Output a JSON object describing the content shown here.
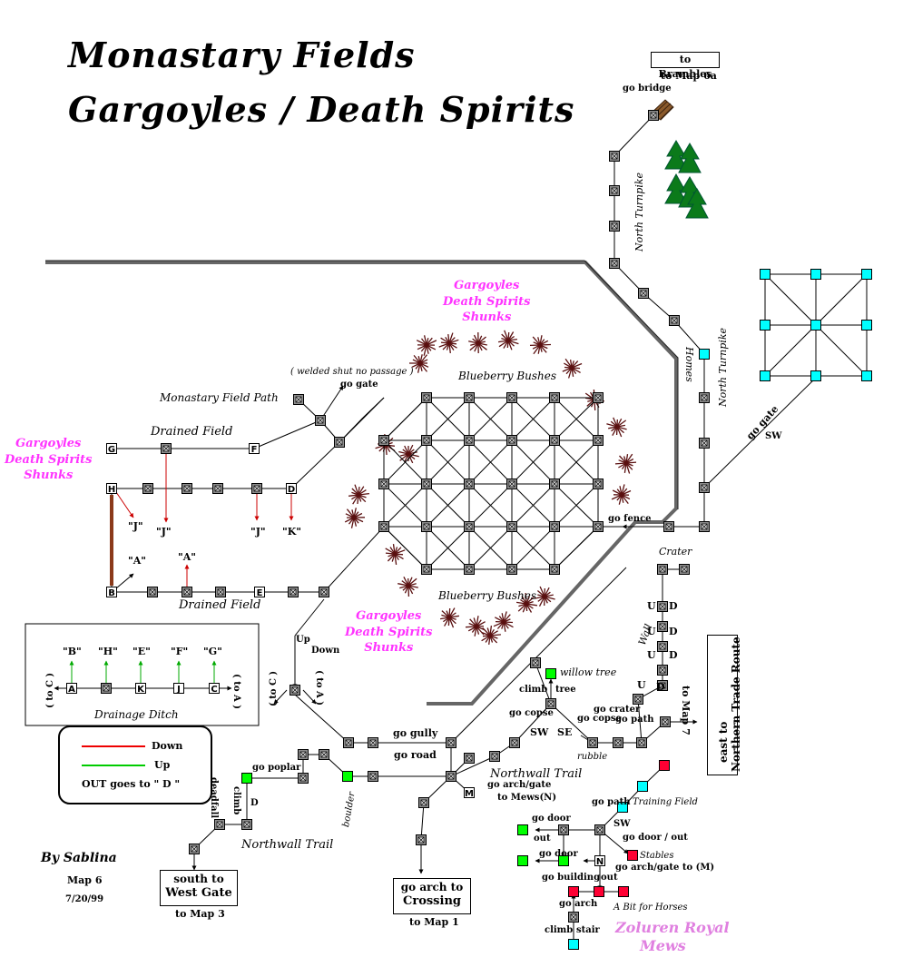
{
  "title_line1": "Monastary Fields",
  "title_line2": "Gargoyles / Death Spirits",
  "creatures": [
    "Gargoyles",
    "Death Spirits",
    "Shunks"
  ],
  "boxes": {
    "brambles_1": "to Brambles",
    "brambles_2": "to Map 6a",
    "west_gate_1": "south to",
    "west_gate_2": "West Gate",
    "west_gate_sub": "to Map 3",
    "crossing_1": "go arch to",
    "crossing_2": "Crossing",
    "crossing_sub": "to Map 1",
    "ntr_1": "east to",
    "ntr_2": "Northern Trade Route",
    "ntr_sub": "to Map 7"
  },
  "labels": {
    "go_bridge": "go bridge",
    "north_turnpike": "North Turnpike",
    "homes": "Homes",
    "go_gate": "go gate",
    "sw": "SW",
    "welded": "( welded shut no passage )",
    "go_gate_small": "go gate",
    "monastary_field_path": "Monastary Field Path",
    "blueberry_bushes": "Blueberry Bushes",
    "drained_field": "Drained Field",
    "go_fence": "go fence",
    "crater": "Crater",
    "wall": "Wall",
    "up": "Up",
    "down": "Down",
    "to_c": "( to C )",
    "to_a": "( to A )",
    "drainage_ditch": "Drainage Ditch",
    "legend_down": "Down",
    "legend_up": "Up",
    "legend_out": "OUT  goes to \" D \"",
    "go_gully": "go gully",
    "go_road": "go road",
    "northwall_trail": "Northwall Trail",
    "boulder": "boulder",
    "go_poplar": "go poplar",
    "deadfall": "deadfall",
    "climb": "climb",
    "willow_tree": "willow tree",
    "tree": "tree",
    "go_copse": "go copse",
    "go_crater": "go crater",
    "go_path": "go path",
    "rubble": "rubble",
    "se": "SE",
    "go_archgate_mews": "go arch/gate",
    "to_mews_n": "to Mews(N)",
    "training_field": "Training Field",
    "go_path2": "go path",
    "go_door": "go door",
    "out": "out",
    "go_door_out": "go door / out",
    "stables": "Stables",
    "go_archgate_m": "go arch/gate to (M)",
    "go_building": "go building",
    "a_bit": "A Bit for Horses",
    "go_arch": "go arch",
    "stair": "stair",
    "zoluren": "Zoluren Royal",
    "mews": "Mews",
    "by": "By Sablina",
    "map_no": "Map 6",
    "date": "7/20/99"
  },
  "node_letters": {
    "G": "G",
    "H": "H",
    "B": "B",
    "F": "F",
    "D": "D",
    "E": "E",
    "A": "A",
    "K": "K",
    "J": "J",
    "C": "C",
    "M": "M",
    "N": "N",
    "U": "U",
    "Dn": "D"
  },
  "quoted": {
    "J": "\"J\"",
    "K": "\"K\"",
    "A": "\"A\"",
    "B": "\"B\"",
    "H": "\"H\"",
    "E": "\"E\"",
    "F": "\"F\"",
    "G": "\"G\""
  },
  "colors": {
    "node_gray": "#8c8c8c",
    "green": "#00ff00",
    "cyan": "#00ffff",
    "red": "#ff0033",
    "pink": "#ff33ff",
    "bush": "#5a1010",
    "tree": "#0b7a1a",
    "bridge": "#8b5a2b"
  }
}
